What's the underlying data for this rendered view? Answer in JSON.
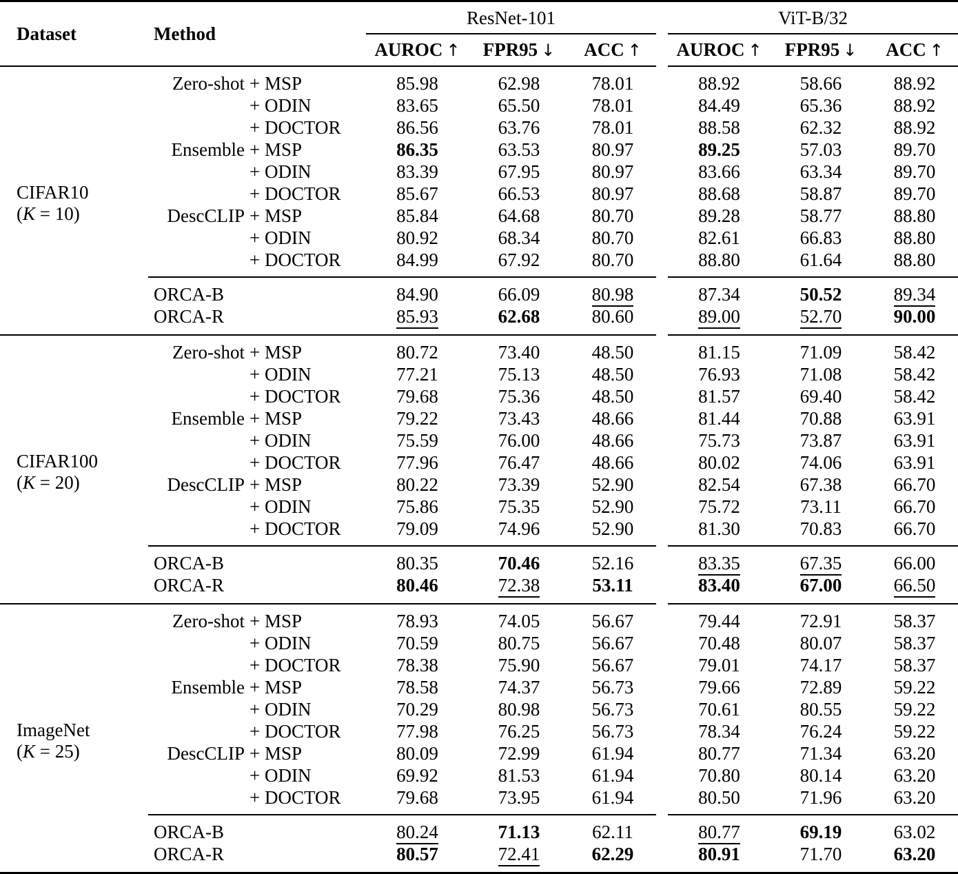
{
  "table": {
    "header": {
      "dataset": "Dataset",
      "method": "Method"
    },
    "groups": [
      {
        "label": "ResNet-101",
        "metrics": [
          {
            "label": "AUROC",
            "arrow": "↑"
          },
          {
            "label": "FPR95",
            "arrow": "↓"
          },
          {
            "label": "ACC",
            "arrow": "↑"
          }
        ]
      },
      {
        "label": "ViT-B/32",
        "metrics": [
          {
            "label": "AUROC",
            "arrow": "↑"
          },
          {
            "label": "FPR95",
            "arrow": "↓"
          },
          {
            "label": "ACC",
            "arrow": "↑"
          }
        ]
      }
    ],
    "sections": [
      {
        "dataset": {
          "name": "CIFAR10",
          "k_open": "(",
          "k_var": "K",
          "k_rest": " = 10)"
        },
        "rows": [
          {
            "prefix": "Zero-shot",
            "method": "+ MSP",
            "cells": [
              {
                "v": "85.98"
              },
              {
                "v": "62.98"
              },
              {
                "v": "78.01"
              },
              {
                "v": "88.92"
              },
              {
                "v": "58.66"
              },
              {
                "v": "88.92"
              }
            ]
          },
          {
            "prefix": "",
            "method": "+ ODIN",
            "cells": [
              {
                "v": "83.65"
              },
              {
                "v": "65.50"
              },
              {
                "v": "78.01"
              },
              {
                "v": "84.49"
              },
              {
                "v": "65.36"
              },
              {
                "v": "88.92"
              }
            ]
          },
          {
            "prefix": "",
            "method": "+ DOCTOR",
            "cells": [
              {
                "v": "86.56"
              },
              {
                "v": "63.76"
              },
              {
                "v": "78.01"
              },
              {
                "v": "88.58"
              },
              {
                "v": "62.32"
              },
              {
                "v": "88.92"
              }
            ]
          },
          {
            "prefix": "Ensemble",
            "method": "+ MSP",
            "cells": [
              {
                "v": "86.35",
                "b": 1
              },
              {
                "v": "63.53"
              },
              {
                "v": "80.97"
              },
              {
                "v": "89.25",
                "b": 1
              },
              {
                "v": "57.03"
              },
              {
                "v": "89.70"
              }
            ]
          },
          {
            "prefix": "",
            "method": "+ ODIN",
            "cells": [
              {
                "v": "83.39"
              },
              {
                "v": "67.95"
              },
              {
                "v": "80.97"
              },
              {
                "v": "83.66"
              },
              {
                "v": "63.34"
              },
              {
                "v": "89.70"
              }
            ]
          },
          {
            "prefix": "",
            "method": "+ DOCTOR",
            "cells": [
              {
                "v": "85.67"
              },
              {
                "v": "66.53"
              },
              {
                "v": "80.97"
              },
              {
                "v": "88.68"
              },
              {
                "v": "58.87"
              },
              {
                "v": "89.70"
              }
            ]
          },
          {
            "prefix": "DescCLIP",
            "method": "+ MSP",
            "cells": [
              {
                "v": "85.84"
              },
              {
                "v": "64.68"
              },
              {
                "v": "80.70"
              },
              {
                "v": "89.28"
              },
              {
                "v": "58.77"
              },
              {
                "v": "88.80"
              }
            ]
          },
          {
            "prefix": "",
            "method": "+ ODIN",
            "cells": [
              {
                "v": "80.92"
              },
              {
                "v": "68.34"
              },
              {
                "v": "80.70"
              },
              {
                "v": "82.61"
              },
              {
                "v": "66.83"
              },
              {
                "v": "88.80"
              }
            ]
          },
          {
            "prefix": "",
            "method": "+ DOCTOR",
            "cells": [
              {
                "v": "84.99"
              },
              {
                "v": "67.92"
              },
              {
                "v": "80.70"
              },
              {
                "v": "88.80"
              },
              {
                "v": "61.64"
              },
              {
                "v": "88.80"
              }
            ]
          }
        ],
        "orca_rows": [
          {
            "method": "ORCA-B",
            "cells": [
              {
                "v": "84.90"
              },
              {
                "v": "66.09"
              },
              {
                "v": "80.98",
                "u": 1
              },
              {
                "v": "87.34"
              },
              {
                "v": "50.52",
                "b": 1
              },
              {
                "v": "89.34",
                "u": 1
              }
            ]
          },
          {
            "method": "ORCA-R",
            "cells": [
              {
                "v": "85.93",
                "u": 1
              },
              {
                "v": "62.68",
                "b": 1
              },
              {
                "v": "80.60"
              },
              {
                "v": "89.00",
                "u": 1
              },
              {
                "v": "52.70",
                "u": 1
              },
              {
                "v": "90.00",
                "b": 1
              }
            ]
          }
        ]
      },
      {
        "dataset": {
          "name": "CIFAR100",
          "k_open": "(",
          "k_var": "K",
          "k_rest": " = 20)"
        },
        "rows": [
          {
            "prefix": "Zero-shot",
            "method": "+ MSP",
            "cells": [
              {
                "v": "80.72"
              },
              {
                "v": "73.40"
              },
              {
                "v": "48.50"
              },
              {
                "v": "81.15"
              },
              {
                "v": "71.09"
              },
              {
                "v": "58.42"
              }
            ]
          },
          {
            "prefix": "",
            "method": "+ ODIN",
            "cells": [
              {
                "v": "77.21"
              },
              {
                "v": "75.13"
              },
              {
                "v": "48.50"
              },
              {
                "v": "76.93"
              },
              {
                "v": "71.08"
              },
              {
                "v": "58.42"
              }
            ]
          },
          {
            "prefix": "",
            "method": "+ DOCTOR",
            "cells": [
              {
                "v": "79.68"
              },
              {
                "v": "75.36"
              },
              {
                "v": "48.50"
              },
              {
                "v": "81.57"
              },
              {
                "v": "69.40"
              },
              {
                "v": "58.42"
              }
            ]
          },
          {
            "prefix": "Ensemble",
            "method": "+ MSP",
            "cells": [
              {
                "v": "79.22"
              },
              {
                "v": "73.43"
              },
              {
                "v": "48.66"
              },
              {
                "v": "81.44"
              },
              {
                "v": "70.88"
              },
              {
                "v": "63.91"
              }
            ]
          },
          {
            "prefix": "",
            "method": "+ ODIN",
            "cells": [
              {
                "v": "75.59"
              },
              {
                "v": "76.00"
              },
              {
                "v": "48.66"
              },
              {
                "v": "75.73"
              },
              {
                "v": "73.87"
              },
              {
                "v": "63.91"
              }
            ]
          },
          {
            "prefix": "",
            "method": "+ DOCTOR",
            "cells": [
              {
                "v": "77.96"
              },
              {
                "v": "76.47"
              },
              {
                "v": "48.66"
              },
              {
                "v": "80.02"
              },
              {
                "v": "74.06"
              },
              {
                "v": "63.91"
              }
            ]
          },
          {
            "prefix": "DescCLIP",
            "method": "+ MSP",
            "cells": [
              {
                "v": "80.22"
              },
              {
                "v": "73.39"
              },
              {
                "v": "52.90"
              },
              {
                "v": "82.54"
              },
              {
                "v": "67.38"
              },
              {
                "v": "66.70"
              }
            ]
          },
          {
            "prefix": "",
            "method": "+ ODIN",
            "cells": [
              {
                "v": "75.86"
              },
              {
                "v": "75.35"
              },
              {
                "v": "52.90"
              },
              {
                "v": "75.72"
              },
              {
                "v": "73.11"
              },
              {
                "v": "66.70"
              }
            ]
          },
          {
            "prefix": "",
            "method": "+ DOCTOR",
            "cells": [
              {
                "v": "79.09"
              },
              {
                "v": "74.96"
              },
              {
                "v": "52.90"
              },
              {
                "v": "81.30"
              },
              {
                "v": "70.83"
              },
              {
                "v": "66.70"
              }
            ]
          }
        ],
        "orca_rows": [
          {
            "method": "ORCA-B",
            "cells": [
              {
                "v": "80.35"
              },
              {
                "v": "70.46",
                "b": 1
              },
              {
                "v": "52.16"
              },
              {
                "v": "83.35",
                "u": 1
              },
              {
                "v": "67.35",
                "u": 1
              },
              {
                "v": "66.00"
              }
            ]
          },
          {
            "method": "ORCA-R",
            "cells": [
              {
                "v": "80.46",
                "b": 1
              },
              {
                "v": "72.38",
                "u": 1
              },
              {
                "v": "53.11",
                "b": 1
              },
              {
                "v": "83.40",
                "b": 1
              },
              {
                "v": "67.00",
                "b": 1
              },
              {
                "v": "66.50",
                "u": 1
              }
            ]
          }
        ]
      },
      {
        "dataset": {
          "name": "ImageNet",
          "k_open": "(",
          "k_var": "K",
          "k_rest": " = 25)"
        },
        "rows": [
          {
            "prefix": "Zero-shot",
            "method": "+ MSP",
            "cells": [
              {
                "v": "78.93"
              },
              {
                "v": "74.05"
              },
              {
                "v": "56.67"
              },
              {
                "v": "79.44"
              },
              {
                "v": "72.91"
              },
              {
                "v": "58.37"
              }
            ]
          },
          {
            "prefix": "",
            "method": "+ ODIN",
            "cells": [
              {
                "v": "70.59"
              },
              {
                "v": "80.75"
              },
              {
                "v": "56.67"
              },
              {
                "v": "70.48"
              },
              {
                "v": "80.07"
              },
              {
                "v": "58.37"
              }
            ]
          },
          {
            "prefix": "",
            "method": "+ DOCTOR",
            "cells": [
              {
                "v": "78.38"
              },
              {
                "v": "75.90"
              },
              {
                "v": "56.67"
              },
              {
                "v": "79.01"
              },
              {
                "v": "74.17"
              },
              {
                "v": "58.37"
              }
            ]
          },
          {
            "prefix": "Ensemble",
            "method": "+ MSP",
            "cells": [
              {
                "v": "78.58"
              },
              {
                "v": "74.37"
              },
              {
                "v": "56.73"
              },
              {
                "v": "79.66"
              },
              {
                "v": "72.89"
              },
              {
                "v": "59.22"
              }
            ]
          },
          {
            "prefix": "",
            "method": "+ ODIN",
            "cells": [
              {
                "v": "70.29"
              },
              {
                "v": "80.98"
              },
              {
                "v": "56.73"
              },
              {
                "v": "70.61"
              },
              {
                "v": "80.55"
              },
              {
                "v": "59.22"
              }
            ]
          },
          {
            "prefix": "",
            "method": "+ DOCTOR",
            "cells": [
              {
                "v": "77.98"
              },
              {
                "v": "76.25"
              },
              {
                "v": "56.73"
              },
              {
                "v": "78.34"
              },
              {
                "v": "76.24"
              },
              {
                "v": "59.22"
              }
            ]
          },
          {
            "prefix": "DescCLIP",
            "method": "+ MSP",
            "cells": [
              {
                "v": "80.09"
              },
              {
                "v": "72.99"
              },
              {
                "v": "61.94"
              },
              {
                "v": "80.77"
              },
              {
                "v": "71.34"
              },
              {
                "v": "63.20"
              }
            ]
          },
          {
            "prefix": "",
            "method": "+ ODIN",
            "cells": [
              {
                "v": "69.92"
              },
              {
                "v": "81.53"
              },
              {
                "v": "61.94"
              },
              {
                "v": "70.80"
              },
              {
                "v": "80.14"
              },
              {
                "v": "63.20"
              }
            ]
          },
          {
            "prefix": "",
            "method": "+ DOCTOR",
            "cells": [
              {
                "v": "79.68"
              },
              {
                "v": "73.95"
              },
              {
                "v": "61.94"
              },
              {
                "v": "80.50"
              },
              {
                "v": "71.96"
              },
              {
                "v": "63.20"
              }
            ]
          }
        ],
        "orca_rows": [
          {
            "method": "ORCA-B",
            "cells": [
              {
                "v": "80.24",
                "u": 1
              },
              {
                "v": "71.13",
                "b": 1
              },
              {
                "v": "62.11"
              },
              {
                "v": "80.77",
                "u": 1
              },
              {
                "v": "69.19",
                "b": 1
              },
              {
                "v": "63.02"
              }
            ]
          },
          {
            "method": "ORCA-R",
            "cells": [
              {
                "v": "80.57",
                "b": 1
              },
              {
                "v": "72.41",
                "u": 1
              },
              {
                "v": "62.29",
                "b": 1
              },
              {
                "v": "80.91",
                "b": 1
              },
              {
                "v": "71.70"
              },
              {
                "v": "63.20",
                "b": 1
              }
            ]
          }
        ]
      }
    ],
    "colors": {
      "text": "#000000",
      "rule": "#000000",
      "background": "#ffffff"
    }
  }
}
